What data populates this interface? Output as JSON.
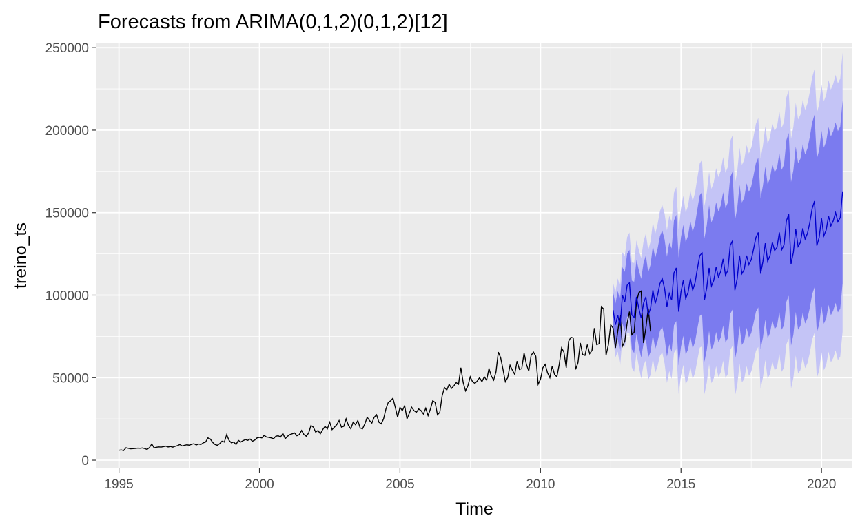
{
  "chart_data": {
    "type": "line",
    "title": "Forecasts from ARIMA(0,1,2)(0,1,2)[12]",
    "xlabel": "Time",
    "ylabel": "treino_ts",
    "xlim": [
      1994.2,
      2021.1
    ],
    "ylim": [
      -5000,
      253000
    ],
    "grid": true,
    "x_ticks": [
      1995,
      2000,
      2005,
      2010,
      2015,
      2020
    ],
    "x_tick_labels": [
      "1995",
      "2000",
      "2005",
      "2010",
      "2015",
      "2020"
    ],
    "y_ticks": [
      0,
      50000,
      100000,
      150000,
      200000,
      250000
    ],
    "y_tick_labels": [
      "0",
      "50000",
      "100000",
      "150000",
      "200000",
      "250000"
    ],
    "colors": {
      "panel": "#ebebeb",
      "grid_major": "#ffffff",
      "observed": "#000000",
      "forecast": "#0000cc",
      "band80": "#7b7bef",
      "band95": "#c4c4f6"
    },
    "observed": {
      "start_year": 1995,
      "start_month": 1,
      "frequency": 12,
      "values": [
        6000,
        6200,
        5800,
        7500,
        7200,
        6900,
        7000,
        7100,
        7300,
        7200,
        7400,
        7000,
        6500,
        7600,
        9800,
        7500,
        7800,
        8000,
        7900,
        8200,
        8500,
        8000,
        8300,
        7900,
        8400,
        8800,
        9500,
        8600,
        9000,
        9300,
        9100,
        9600,
        10000,
        9200,
        9800,
        9500,
        10500,
        11000,
        13500,
        12800,
        10800,
        9500,
        9000,
        10000,
        11500,
        11000,
        15500,
        12000,
        10500,
        11000,
        9500,
        12000,
        11000,
        11800,
        12500,
        12000,
        12800,
        11500,
        12200,
        13500,
        13800,
        13500,
        15000,
        14000,
        13800,
        13500,
        13000,
        14500,
        14800,
        14000,
        16200,
        13000,
        14500,
        15500,
        16000,
        16500,
        14800,
        15500,
        18000,
        15500,
        14500,
        16500,
        21000,
        20000,
        17000,
        18000,
        16000,
        18500,
        20500,
        19000,
        23000,
        18500,
        20000,
        21500,
        24000,
        20000,
        20500,
        25000,
        21000,
        19000,
        23000,
        21500,
        24000,
        19500,
        19000,
        22000,
        26000,
        24000,
        22500,
        26000,
        27500,
        23000,
        22000,
        25000,
        31000,
        35000,
        36000,
        37500,
        32000,
        26000,
        32000,
        30000,
        33000,
        25000,
        28500,
        32000,
        30000,
        29000,
        31000,
        30000,
        28000,
        31500,
        27000,
        31000,
        36000,
        35000,
        27500,
        29000,
        39000,
        44000,
        42500,
        46000,
        43500,
        45000,
        47000,
        46000,
        56000,
        47000,
        42000,
        45000,
        50500,
        47500,
        46500,
        48000,
        50000,
        47500,
        50500,
        48500,
        55500,
        51000,
        48500,
        53500,
        65500,
        62000,
        55000,
        47500,
        50000,
        57500,
        54500,
        52000,
        60000,
        55000,
        55500,
        65000,
        58000,
        54000,
        63500,
        65500,
        63000,
        46000,
        49000,
        56000,
        58000,
        53000,
        50000,
        57000,
        52000,
        50500,
        58000,
        68000,
        65500,
        56000,
        72000,
        74500,
        74000,
        55000,
        59000,
        71000,
        64000,
        63500,
        70000,
        64500,
        66500,
        80000,
        70000,
        70500,
        93000,
        91500,
        63500,
        70000,
        82000,
        80000,
        68000,
        78000,
        88000,
        69000,
        72000,
        83000,
        90000,
        76000,
        77500,
        96000,
        101500,
        102500,
        71000,
        80000,
        92000,
        78000
      ]
    },
    "forecast": {
      "start_year": 2012,
      "start_month": 8,
      "frequency": 12,
      "values": [
        91000,
        82000,
        88000,
        81000,
        100000,
        96000,
        106000,
        107500,
        88000,
        86500,
        99000,
        92000,
        86000,
        95000,
        99000,
        88000,
        92000,
        103000,
        95000,
        100000,
        107000,
        110000,
        104000,
        93000,
        101000,
        97000,
        113500,
        116500,
        90000,
        102000,
        109000,
        98000,
        101500,
        110000,
        103000,
        107500,
        116000,
        124000,
        125500,
        97000,
        104500,
        116500,
        105500,
        109000,
        117000,
        111000,
        114500,
        122000,
        112000,
        115000,
        130000,
        133000,
        103000,
        110000,
        124000,
        113000,
        115500,
        124000,
        118500,
        121500,
        128000,
        135000,
        138000,
        113000,
        120500,
        131500,
        120500,
        124000,
        132000,
        127000,
        129000,
        138000,
        127500,
        130500,
        145000,
        149000,
        119000,
        126000,
        140000,
        129500,
        132000,
        140500,
        134000,
        137500,
        144000,
        152500,
        157000,
        130000,
        135000,
        146500,
        136000,
        139500,
        148000,
        142000,
        145000,
        150000,
        144500,
        147000,
        162500
      ]
    }
  }
}
